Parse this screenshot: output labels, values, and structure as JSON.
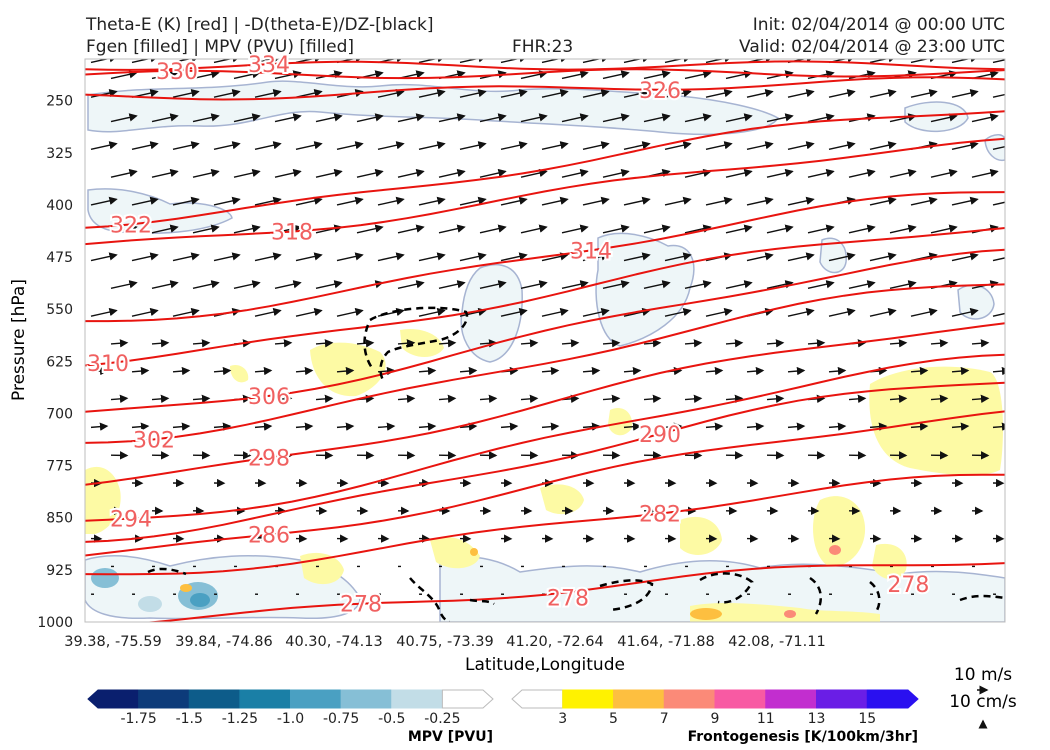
{
  "header": {
    "title_line1": "Theta-E (K) [red] | -D(theta-E)/DZ-[black]",
    "title_line2": "Fgen [filled] | MPV (PVU) [filled]",
    "fhr": "FHR:23",
    "init": "Init: 02/04/2014 @ 00:00 UTC",
    "valid": "Valid: 02/04/2014 @ 23:00 UTC"
  },
  "chart_data": {
    "type": "cross-section",
    "xlabel": "Latitude,Longitude",
    "ylabel": "Pressure [hPa]",
    "x_ticks": [
      "39.38, -75.59",
      "39.84, -74.86",
      "40.30, -74.13",
      "40.75, -73.39",
      "41.20, -72.64",
      "41.64, -71.88",
      "42.08, -71.11"
    ],
    "y_ticks": [
      250,
      325,
      400,
      475,
      550,
      625,
      700,
      775,
      850,
      925,
      1000
    ],
    "ylim": [
      190,
      1000
    ],
    "theta_e_color": "#e8140f",
    "theta_e_label_color": "#f06060",
    "theta_e_contours": [
      {
        "value": 334,
        "y_left": 200,
        "y_right": 199,
        "label_x": 0.21
      },
      {
        "value": 330,
        "y_left": 213,
        "y_right": 209,
        "label_x": 0.09
      },
      {
        "value": 326,
        "y_left": 245,
        "y_right": 221,
        "label_x": 0.62
      },
      {
        "value": 322,
        "y_left": 427,
        "y_right": 260,
        "label_x": 0.06
      },
      {
        "value": 318,
        "y_left": 460,
        "y_right": 310,
        "label_x": 0.22
      },
      {
        "value": 314,
        "y_left": 568,
        "y_right": 380,
        "label_x": 0.55
      },
      {
        "value": 310,
        "y_left": 626,
        "y_right": 430,
        "label_x": 0.02
      },
      {
        "value": 306,
        "y_left": 703,
        "y_right": 470,
        "label_x": 0.21
      },
      {
        "value": 302,
        "y_left": 740,
        "y_right": 510,
        "label_x": 0.07
      },
      {
        "value": 298,
        "y_left": 800,
        "y_right": 570,
        "label_x": 0.2
      },
      {
        "value": 294,
        "y_left": 860,
        "y_right": 620,
        "label_x": 0.05
      },
      {
        "value": 290,
        "y_left": 880,
        "y_right": 650,
        "label_x": 0.63
      },
      {
        "value": 286,
        "y_left": 905,
        "y_right": 700,
        "label_x": 0.2
      },
      {
        "value": 282,
        "y_left": 935,
        "y_right": 790,
        "label_x": 0.62
      },
      {
        "value": 278,
        "y_left": 1000,
        "y_right": 910,
        "label_x": 0.29
      }
    ],
    "extra_labels": [
      {
        "value": "278",
        "x_frac": 0.525,
        "y": 965
      },
      {
        "value": "278",
        "x_frac": 0.895,
        "y": 945
      }
    ],
    "mpv_colorbar": {
      "label": "MPV [PVU]",
      "ticks": [
        "-1.75",
        "-1.5",
        "-1.25",
        "-1.0",
        "-0.75",
        "-0.5",
        "-0.25"
      ],
      "colors": [
        "#0a1f6e",
        "#0d3b7a",
        "#0d5c8a",
        "#1a7fa6",
        "#4aa0c2",
        "#86bfd6",
        "#c2dde7",
        "#ffffff"
      ]
    },
    "fgen_colorbar": {
      "label": "Frontogenesis [K/100km/3hr]",
      "ticks": [
        "3",
        "5",
        "7",
        "9",
        "11",
        "13",
        "15"
      ],
      "colors": [
        "#ffffff",
        "#fff200",
        "#fdbf40",
        "#fb8a78",
        "#f85aa3",
        "#c22ecf",
        "#6a1ee6",
        "#2a10f0"
      ]
    },
    "reference_vectors": {
      "horizontal": "10 m/s",
      "vertical": "10 cm/s"
    }
  }
}
